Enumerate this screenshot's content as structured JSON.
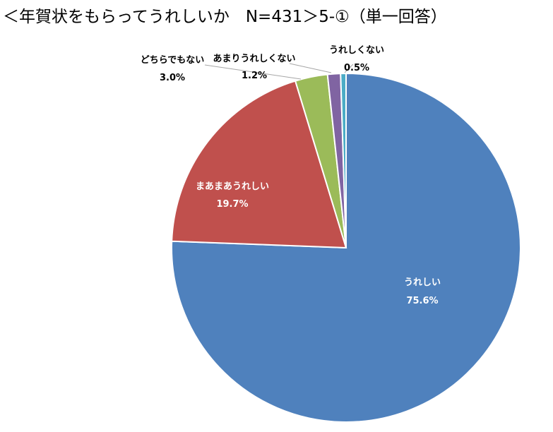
{
  "title": "＜年賀状をもらってうれしいか　N=431＞5-①（単一回答）",
  "chart_data": {
    "type": "pie",
    "title": "＜年賀状をもらってうれしいか　N=431＞5-①（単一回答）",
    "start_angle_deg": 0,
    "direction": "clockwise",
    "slices": [
      {
        "label": "うれしい",
        "value": 75.6,
        "value_label": "75.6%",
        "color": "#4F81BD"
      },
      {
        "label": "まあまあうれしい",
        "value": 19.7,
        "value_label": "19.7%",
        "color": "#C0504D"
      },
      {
        "label": "どちらでもない",
        "value": 3.0,
        "value_label": "3.0%",
        "color": "#9BBB59"
      },
      {
        "label": "あまりうれしくない",
        "value": 1.2,
        "value_label": "1.2%",
        "color": "#8064A2"
      },
      {
        "label": "うれしくない",
        "value": 0.5,
        "value_label": "0.5%",
        "color": "#4BACC6"
      }
    ]
  }
}
